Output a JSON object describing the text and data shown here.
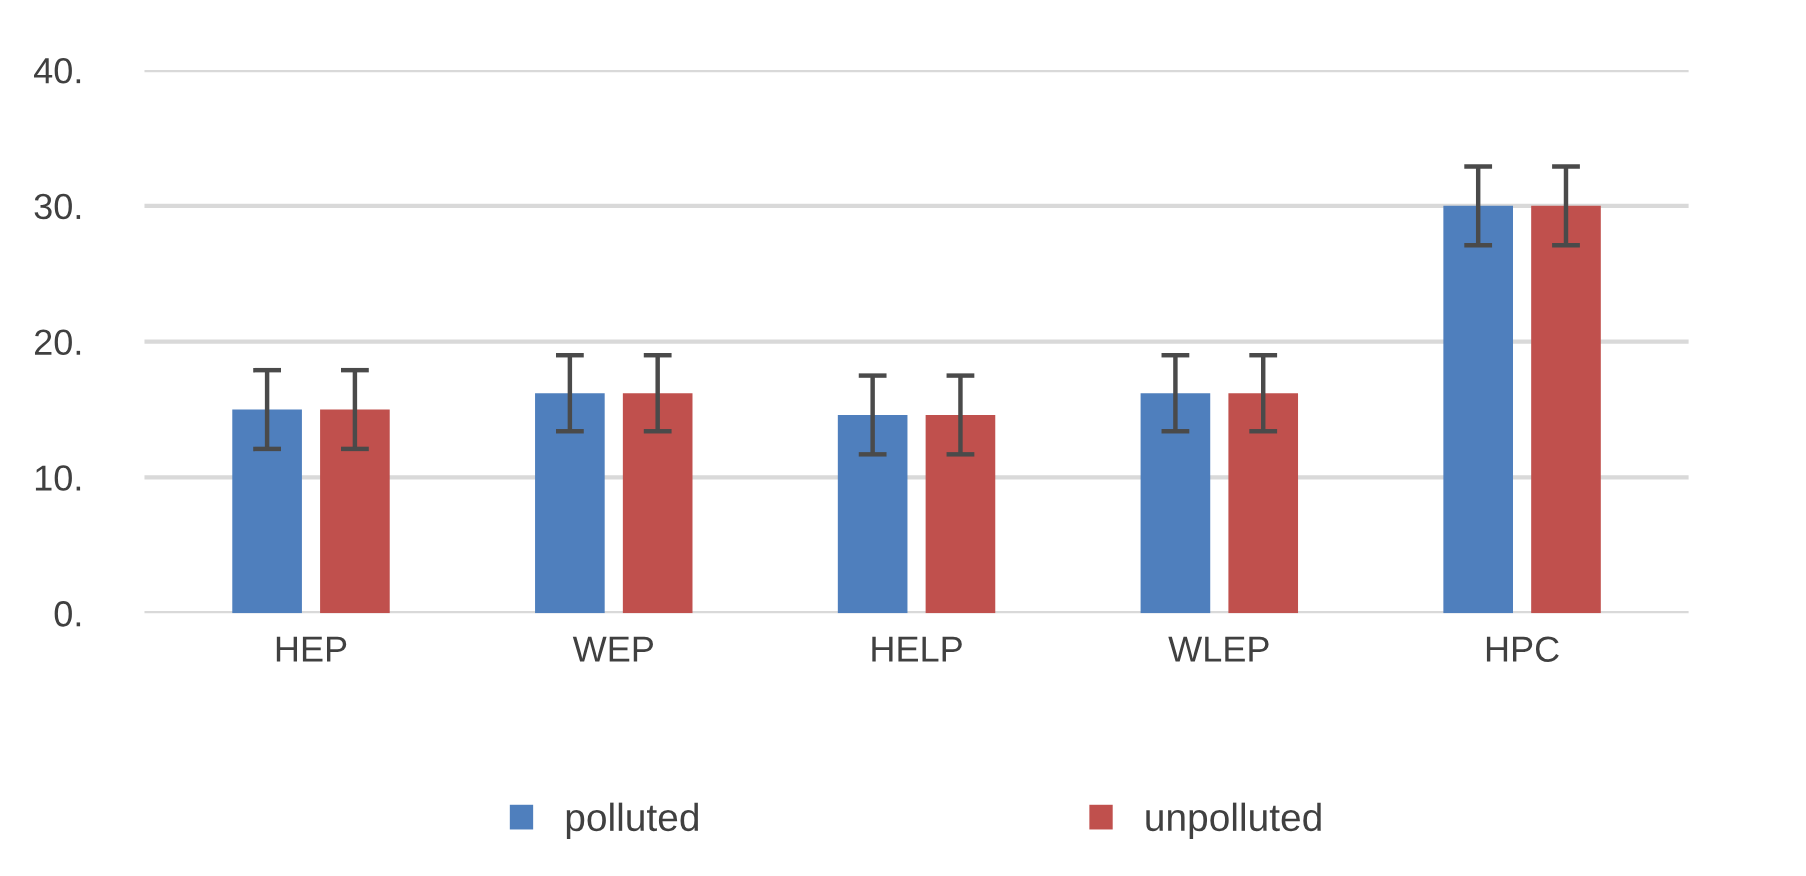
{
  "chart_data": {
    "type": "bar",
    "categories": [
      "HEP",
      "WEP",
      "HELP",
      "WLEP",
      "HPC"
    ],
    "series": [
      {
        "name": "polluted",
        "color": "#4f7fbd",
        "values": [
          15.0,
          16.2,
          14.6,
          16.2,
          30.0
        ],
        "errors": [
          2.9,
          2.8,
          2.9,
          2.8,
          2.9
        ]
      },
      {
        "name": "unpolluted",
        "color": "#c0504d",
        "values": [
          15.0,
          16.2,
          14.6,
          16.2,
          30.0
        ],
        "errors": [
          2.9,
          2.8,
          2.9,
          2.8,
          2.9
        ]
      }
    ],
    "ylim": [
      0,
      40
    ],
    "yticks": [
      {
        "value": 0,
        "label": "0."
      },
      {
        "value": 10,
        "label": "10."
      },
      {
        "value": 20,
        "label": "20."
      },
      {
        "value": 30,
        "label": "30."
      },
      {
        "value": 40,
        "label": "40."
      }
    ],
    "grid": "y",
    "legend": "bottom"
  }
}
